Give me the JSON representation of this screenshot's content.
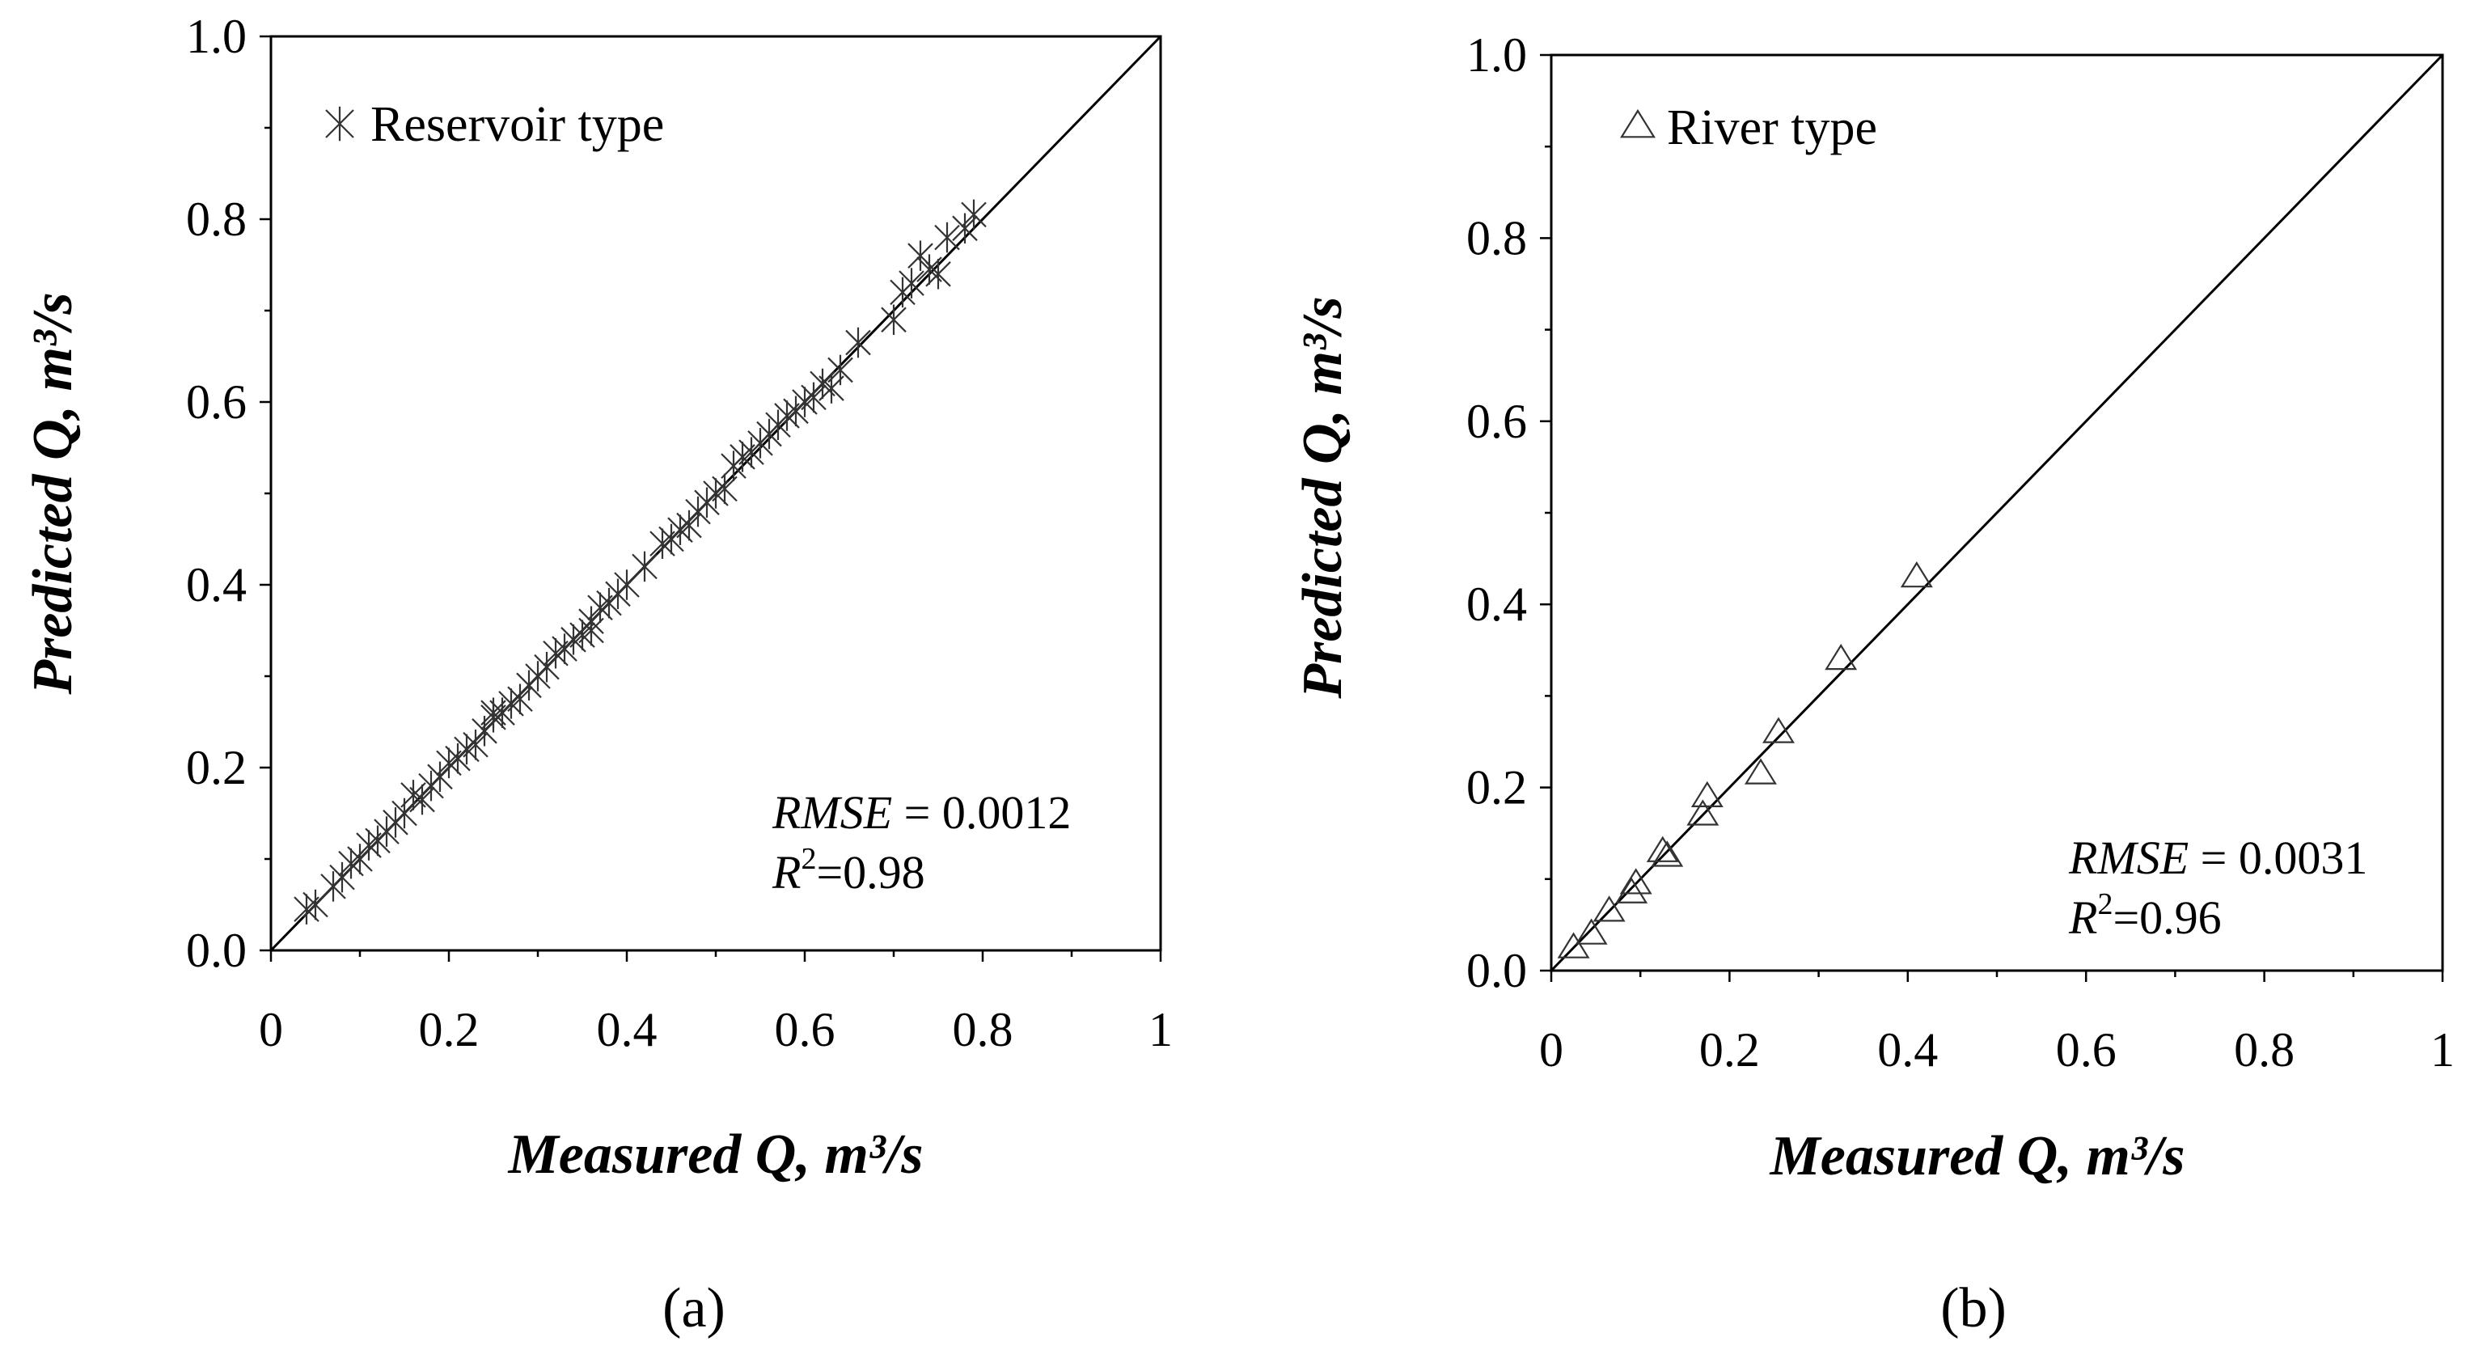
{
  "chart_data": [
    {
      "type": "scatter",
      "panel_label": "(a)",
      "legend": {
        "label": "Reservoir type",
        "marker": "asterisk-icon",
        "position": "top-left"
      },
      "xlabel": "Measured Q, m³/s",
      "ylabel": "Predicted Q, m³/s",
      "xlim": [
        0,
        1
      ],
      "ylim": [
        0,
        1
      ],
      "xticks": [
        "0",
        "0.2",
        "0.4",
        "0.6",
        "0.8",
        "1"
      ],
      "yticks": [
        "0.0",
        "0.2",
        "0.4",
        "0.6",
        "0.8",
        "1.0"
      ],
      "reference_line": "1:1",
      "stats": {
        "rmse_label": "RMSE",
        "rmse_value": " = 0.0012",
        "r2_label": "R",
        "r2_sup": "2",
        "r2_value": "=0.98"
      },
      "series": [
        {
          "name": "Reservoir type",
          "points": [
            [
              0.04,
              0.045
            ],
            [
              0.05,
              0.05
            ],
            [
              0.07,
              0.07
            ],
            [
              0.08,
              0.08
            ],
            [
              0.09,
              0.095
            ],
            [
              0.1,
              0.1
            ],
            [
              0.11,
              0.115
            ],
            [
              0.12,
              0.12
            ],
            [
              0.13,
              0.13
            ],
            [
              0.14,
              0.14
            ],
            [
              0.15,
              0.15
            ],
            [
              0.16,
              0.17
            ],
            [
              0.17,
              0.165
            ],
            [
              0.18,
              0.18
            ],
            [
              0.19,
              0.19
            ],
            [
              0.2,
              0.205
            ],
            [
              0.21,
              0.21
            ],
            [
              0.22,
              0.22
            ],
            [
              0.23,
              0.225
            ],
            [
              0.24,
              0.24
            ],
            [
              0.25,
              0.255
            ],
            [
              0.26,
              0.26
            ],
            [
              0.27,
              0.27
            ],
            [
              0.28,
              0.275
            ],
            [
              0.29,
              0.29
            ],
            [
              0.3,
              0.3
            ],
            [
              0.31,
              0.31
            ],
            [
              0.32,
              0.325
            ],
            [
              0.33,
              0.33
            ],
            [
              0.34,
              0.34
            ],
            [
              0.35,
              0.345
            ],
            [
              0.36,
              0.36
            ],
            [
              0.37,
              0.375
            ],
            [
              0.38,
              0.38
            ],
            [
              0.39,
              0.39
            ],
            [
              0.4,
              0.4
            ],
            [
              0.42,
              0.42
            ],
            [
              0.44,
              0.445
            ],
            [
              0.45,
              0.45
            ],
            [
              0.46,
              0.46
            ],
            [
              0.47,
              0.465
            ],
            [
              0.48,
              0.48
            ],
            [
              0.49,
              0.49
            ],
            [
              0.5,
              0.5
            ],
            [
              0.51,
              0.505
            ],
            [
              0.52,
              0.53
            ],
            [
              0.53,
              0.54
            ],
            [
              0.54,
              0.545
            ],
            [
              0.55,
              0.555
            ],
            [
              0.56,
              0.565
            ],
            [
              0.57,
              0.575
            ],
            [
              0.58,
              0.585
            ],
            [
              0.59,
              0.59
            ],
            [
              0.6,
              0.6
            ],
            [
              0.61,
              0.605
            ],
            [
              0.62,
              0.62
            ],
            [
              0.63,
              0.615
            ],
            [
              0.64,
              0.635
            ],
            [
              0.66,
              0.665
            ],
            [
              0.7,
              0.69
            ],
            [
              0.71,
              0.72
            ],
            [
              0.72,
              0.73
            ],
            [
              0.73,
              0.76
            ],
            [
              0.74,
              0.745
            ],
            [
              0.75,
              0.74
            ],
            [
              0.76,
              0.78
            ],
            [
              0.78,
              0.79
            ],
            [
              0.79,
              0.805
            ],
            [
              0.25,
              0.26
            ],
            [
              0.36,
              0.35
            ]
          ]
        }
      ]
    },
    {
      "type": "scatter",
      "panel_label": "(b)",
      "legend": {
        "label": "River type",
        "marker": "triangle-icon",
        "position": "top-left"
      },
      "xlabel": "Measured Q, m³/s",
      "ylabel": "Predicted Q, m³/s",
      "xlim": [
        0,
        1
      ],
      "ylim": [
        0,
        1
      ],
      "xticks": [
        "0",
        "0.2",
        "0.4",
        "0.6",
        "0.8",
        "1"
      ],
      "yticks": [
        "0.0",
        "0.2",
        "0.4",
        "0.6",
        "0.8",
        "1.0"
      ],
      "reference_line": "1:1",
      "stats": {
        "rmse_label": "RMSE",
        "rmse_value": " = 0.0031",
        "r2_label": "R",
        "r2_sup": "2",
        "r2_value": "=0.96"
      },
      "series": [
        {
          "name": "River type",
          "points": [
            [
              0.025,
              0.025
            ],
            [
              0.045,
              0.04
            ],
            [
              0.065,
              0.065
            ],
            [
              0.09,
              0.085
            ],
            [
              0.095,
              0.095
            ],
            [
              0.125,
              0.13
            ],
            [
              0.13,
              0.125
            ],
            [
              0.17,
              0.17
            ],
            [
              0.175,
              0.19
            ],
            [
              0.235,
              0.215
            ],
            [
              0.255,
              0.26
            ],
            [
              0.325,
              0.34
            ],
            [
              0.41,
              0.43
            ]
          ]
        }
      ]
    }
  ]
}
